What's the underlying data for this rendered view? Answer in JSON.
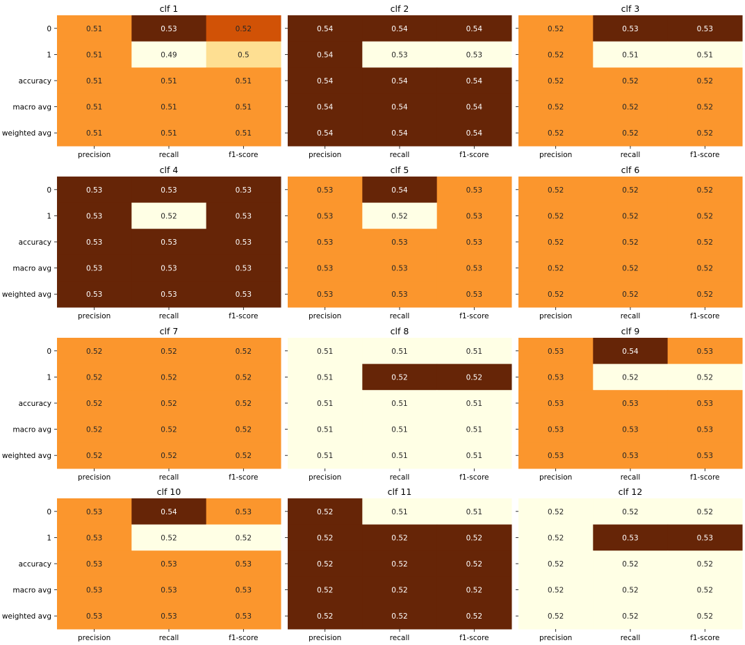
{
  "figure": {
    "rows": [
      "0",
      "1",
      "accuracy",
      "macro avg",
      "weighted avg"
    ],
    "columns": [
      "precision",
      "recall",
      "f1-score"
    ],
    "colormap": "YlOrBr",
    "colors": {
      "light": "#ffffe5",
      "mid_light": "#fedf92",
      "mid": "#fb962d",
      "mid_dark": "#d15206",
      "dark": "#662507"
    }
  },
  "chart_data": [
    {
      "type": "heatmap",
      "title": "clf 1",
      "rows": [
        "0",
        "1",
        "accuracy",
        "macro avg",
        "weighted avg"
      ],
      "columns": [
        "precision",
        "recall",
        "f1-score"
      ],
      "values": [
        [
          0.51,
          0.53,
          0.52
        ],
        [
          0.51,
          0.49,
          0.5
        ],
        [
          0.51,
          0.51,
          0.51
        ],
        [
          0.51,
          0.51,
          0.51
        ],
        [
          0.51,
          0.51,
          0.51
        ]
      ]
    },
    {
      "type": "heatmap",
      "title": "clf 2",
      "rows": [
        "0",
        "1",
        "accuracy",
        "macro avg",
        "weighted avg"
      ],
      "columns": [
        "precision",
        "recall",
        "f1-score"
      ],
      "values": [
        [
          0.54,
          0.54,
          0.54
        ],
        [
          0.54,
          0.53,
          0.53
        ],
        [
          0.54,
          0.54,
          0.54
        ],
        [
          0.54,
          0.54,
          0.54
        ],
        [
          0.54,
          0.54,
          0.54
        ]
      ]
    },
    {
      "type": "heatmap",
      "title": "clf 3",
      "rows": [
        "0",
        "1",
        "accuracy",
        "macro avg",
        "weighted avg"
      ],
      "columns": [
        "precision",
        "recall",
        "f1-score"
      ],
      "values": [
        [
          0.52,
          0.53,
          0.53
        ],
        [
          0.52,
          0.51,
          0.51
        ],
        [
          0.52,
          0.52,
          0.52
        ],
        [
          0.52,
          0.52,
          0.52
        ],
        [
          0.52,
          0.52,
          0.52
        ]
      ]
    },
    {
      "type": "heatmap",
      "title": "clf 4",
      "rows": [
        "0",
        "1",
        "accuracy",
        "macro avg",
        "weighted avg"
      ],
      "columns": [
        "precision",
        "recall",
        "f1-score"
      ],
      "values": [
        [
          0.53,
          0.53,
          0.53
        ],
        [
          0.53,
          0.52,
          0.53
        ],
        [
          0.53,
          0.53,
          0.53
        ],
        [
          0.53,
          0.53,
          0.53
        ],
        [
          0.53,
          0.53,
          0.53
        ]
      ]
    },
    {
      "type": "heatmap",
      "title": "clf 5",
      "rows": [
        "0",
        "1",
        "accuracy",
        "macro avg",
        "weighted avg"
      ],
      "columns": [
        "precision",
        "recall",
        "f1-score"
      ],
      "values": [
        [
          0.53,
          0.54,
          0.53
        ],
        [
          0.53,
          0.52,
          0.53
        ],
        [
          0.53,
          0.53,
          0.53
        ],
        [
          0.53,
          0.53,
          0.53
        ],
        [
          0.53,
          0.53,
          0.53
        ]
      ]
    },
    {
      "type": "heatmap",
      "title": "clf 6",
      "rows": [
        "0",
        "1",
        "accuracy",
        "macro avg",
        "weighted avg"
      ],
      "columns": [
        "precision",
        "recall",
        "f1-score"
      ],
      "values": [
        [
          0.52,
          0.52,
          0.52
        ],
        [
          0.52,
          0.52,
          0.52
        ],
        [
          0.52,
          0.52,
          0.52
        ],
        [
          0.52,
          0.52,
          0.52
        ],
        [
          0.52,
          0.52,
          0.52
        ]
      ]
    },
    {
      "type": "heatmap",
      "title": "clf 7",
      "rows": [
        "0",
        "1",
        "accuracy",
        "macro avg",
        "weighted avg"
      ],
      "columns": [
        "precision",
        "recall",
        "f1-score"
      ],
      "values": [
        [
          0.52,
          0.52,
          0.52
        ],
        [
          0.52,
          0.52,
          0.52
        ],
        [
          0.52,
          0.52,
          0.52
        ],
        [
          0.52,
          0.52,
          0.52
        ],
        [
          0.52,
          0.52,
          0.52
        ]
      ]
    },
    {
      "type": "heatmap",
      "title": "clf 8",
      "rows": [
        "0",
        "1",
        "accuracy",
        "macro avg",
        "weighted avg"
      ],
      "columns": [
        "precision",
        "recall",
        "f1-score"
      ],
      "values": [
        [
          0.51,
          0.51,
          0.51
        ],
        [
          0.51,
          0.52,
          0.52
        ],
        [
          0.51,
          0.51,
          0.51
        ],
        [
          0.51,
          0.51,
          0.51
        ],
        [
          0.51,
          0.51,
          0.51
        ]
      ]
    },
    {
      "type": "heatmap",
      "title": "clf 9",
      "rows": [
        "0",
        "1",
        "accuracy",
        "macro avg",
        "weighted avg"
      ],
      "columns": [
        "precision",
        "recall",
        "f1-score"
      ],
      "values": [
        [
          0.53,
          0.54,
          0.53
        ],
        [
          0.53,
          0.52,
          0.52
        ],
        [
          0.53,
          0.53,
          0.53
        ],
        [
          0.53,
          0.53,
          0.53
        ],
        [
          0.53,
          0.53,
          0.53
        ]
      ]
    },
    {
      "type": "heatmap",
      "title": "clf 10",
      "rows": [
        "0",
        "1",
        "accuracy",
        "macro avg",
        "weighted avg"
      ],
      "columns": [
        "precision",
        "recall",
        "f1-score"
      ],
      "values": [
        [
          0.53,
          0.54,
          0.53
        ],
        [
          0.53,
          0.52,
          0.52
        ],
        [
          0.53,
          0.53,
          0.53
        ],
        [
          0.53,
          0.53,
          0.53
        ],
        [
          0.53,
          0.53,
          0.53
        ]
      ]
    },
    {
      "type": "heatmap",
      "title": "clf 11",
      "rows": [
        "0",
        "1",
        "accuracy",
        "macro avg",
        "weighted avg"
      ],
      "columns": [
        "precision",
        "recall",
        "f1-score"
      ],
      "values": [
        [
          0.52,
          0.51,
          0.51
        ],
        [
          0.52,
          0.52,
          0.52
        ],
        [
          0.52,
          0.52,
          0.52
        ],
        [
          0.52,
          0.52,
          0.52
        ],
        [
          0.52,
          0.52,
          0.52
        ]
      ]
    },
    {
      "type": "heatmap",
      "title": "clf 12",
      "rows": [
        "0",
        "1",
        "accuracy",
        "macro avg",
        "weighted avg"
      ],
      "columns": [
        "precision",
        "recall",
        "f1-score"
      ],
      "values": [
        [
          0.52,
          0.52,
          0.52
        ],
        [
          0.52,
          0.53,
          0.53
        ],
        [
          0.52,
          0.52,
          0.52
        ],
        [
          0.52,
          0.52,
          0.52
        ],
        [
          0.52,
          0.52,
          0.52
        ]
      ]
    }
  ]
}
